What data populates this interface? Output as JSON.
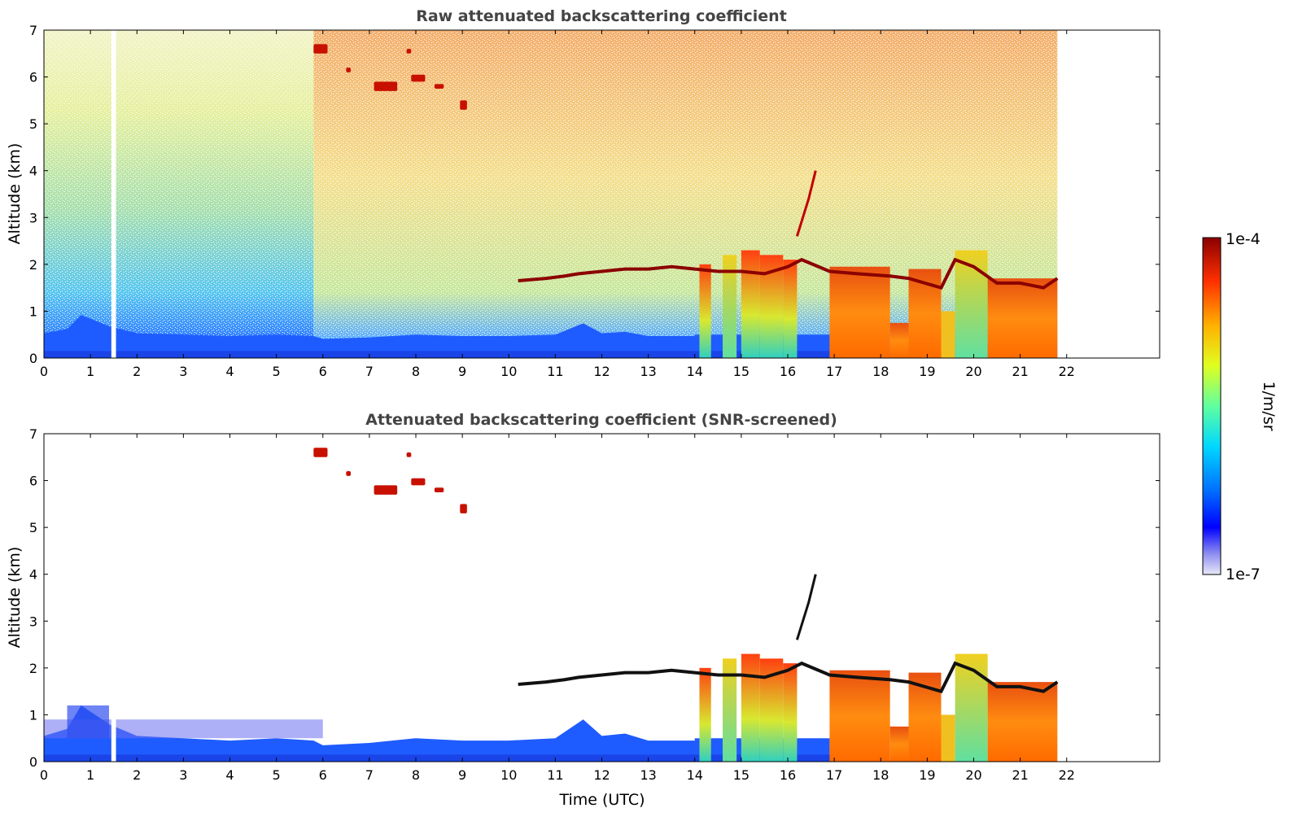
{
  "chart_data": [
    {
      "type": "heatmap",
      "title": "Raw attenuated backscattering coefficient",
      "xlabel": "",
      "ylabel": "Altitude (km)",
      "xlim": [
        0,
        24
      ],
      "ylim": [
        0,
        7
      ],
      "x_ticks": [
        "0",
        "1",
        "2",
        "3",
        "4",
        "5",
        "6",
        "7",
        "8",
        "9",
        "10",
        "11",
        "12",
        "13",
        "14",
        "15",
        "16",
        "17",
        "18",
        "19",
        "20",
        "21",
        "22"
      ],
      "y_ticks": [
        "0",
        "1",
        "2",
        "3",
        "4",
        "5",
        "6",
        "7"
      ],
      "data_end_hour": 21.8,
      "gap_hours": [
        1.45,
        1.55
      ],
      "features": [
        {
          "name": "boundary layer",
          "x_range": [
            0,
            21.8
          ],
          "alt_range": [
            0,
            0.5
          ]
        },
        {
          "name": "cirrus",
          "x_range": [
            5.8,
            9.0
          ],
          "alt_range": [
            5.3,
            6.7
          ]
        },
        {
          "name": "cloud base",
          "x_range": [
            10.2,
            21.8
          ],
          "alt_range": [
            1.5,
            2.0
          ]
        },
        {
          "name": "precipitation",
          "x_range": [
            14.0,
            16.2
          ],
          "alt_range": [
            0,
            2.3
          ]
        },
        {
          "name": "rain",
          "x_range": [
            16.9,
            21.8
          ],
          "alt_range": [
            0,
            2.0
          ]
        }
      ],
      "grid": false
    },
    {
      "type": "heatmap",
      "title": "Attenuated backscattering coefficient (SNR-screened)",
      "xlabel": "Time (UTC)",
      "ylabel": "Altitude (km)",
      "xlim": [
        0,
        24
      ],
      "ylim": [
        0,
        7
      ],
      "x_ticks": [
        "0",
        "1",
        "2",
        "3",
        "4",
        "5",
        "6",
        "7",
        "8",
        "9",
        "10",
        "11",
        "12",
        "13",
        "14",
        "15",
        "16",
        "17",
        "18",
        "19",
        "20",
        "21",
        "22"
      ],
      "y_ticks": [
        "0",
        "1",
        "2",
        "3",
        "4",
        "5",
        "6",
        "7"
      ],
      "data_end_hour": 21.8,
      "gap_hours": [
        1.45,
        1.55
      ],
      "grid": false
    }
  ],
  "colorbar": {
    "label": "1/m/sr",
    "max_label": "1e-4",
    "min_label": "1e-7",
    "scale": "log",
    "range": [
      1e-07,
      0.0001
    ],
    "colormap": [
      "#e8e8f8",
      "#9090f0",
      "#0000ff",
      "#0070ff",
      "#00d8ff",
      "#60ffa0",
      "#e0ff20",
      "#ffb000",
      "#ff3000",
      "#8b0000"
    ]
  }
}
